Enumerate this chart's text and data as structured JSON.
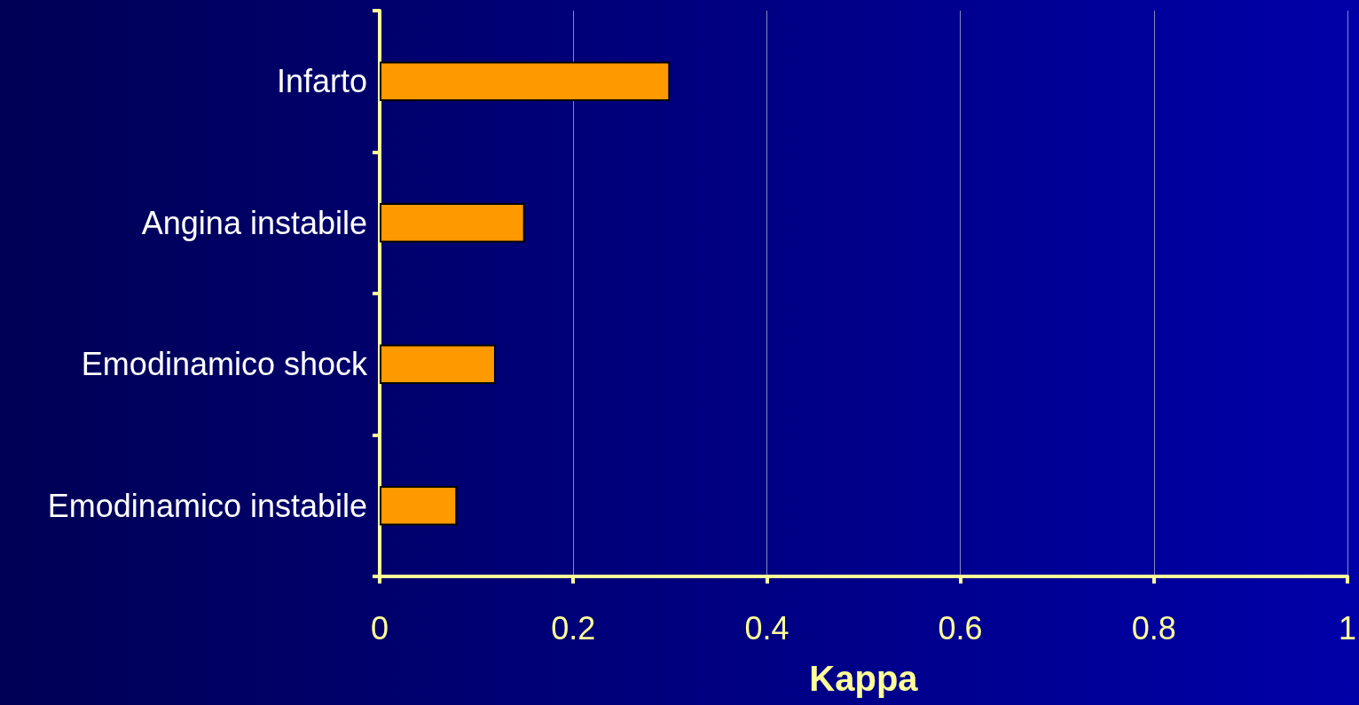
{
  "chart_data": {
    "type": "bar",
    "orientation": "horizontal",
    "xlabel": "Kappa",
    "categories": [
      "Infarto",
      "Angina instabile",
      "Emodinamico shock",
      "Emodinamico instabile"
    ],
    "values": [
      0.3,
      0.15,
      0.12,
      0.08
    ],
    "color": "#ff9900",
    "xlim": [
      0,
      1
    ],
    "xticks": [
      0,
      0.2,
      0.4,
      0.6,
      0.8,
      1
    ],
    "grid": "x"
  }
}
